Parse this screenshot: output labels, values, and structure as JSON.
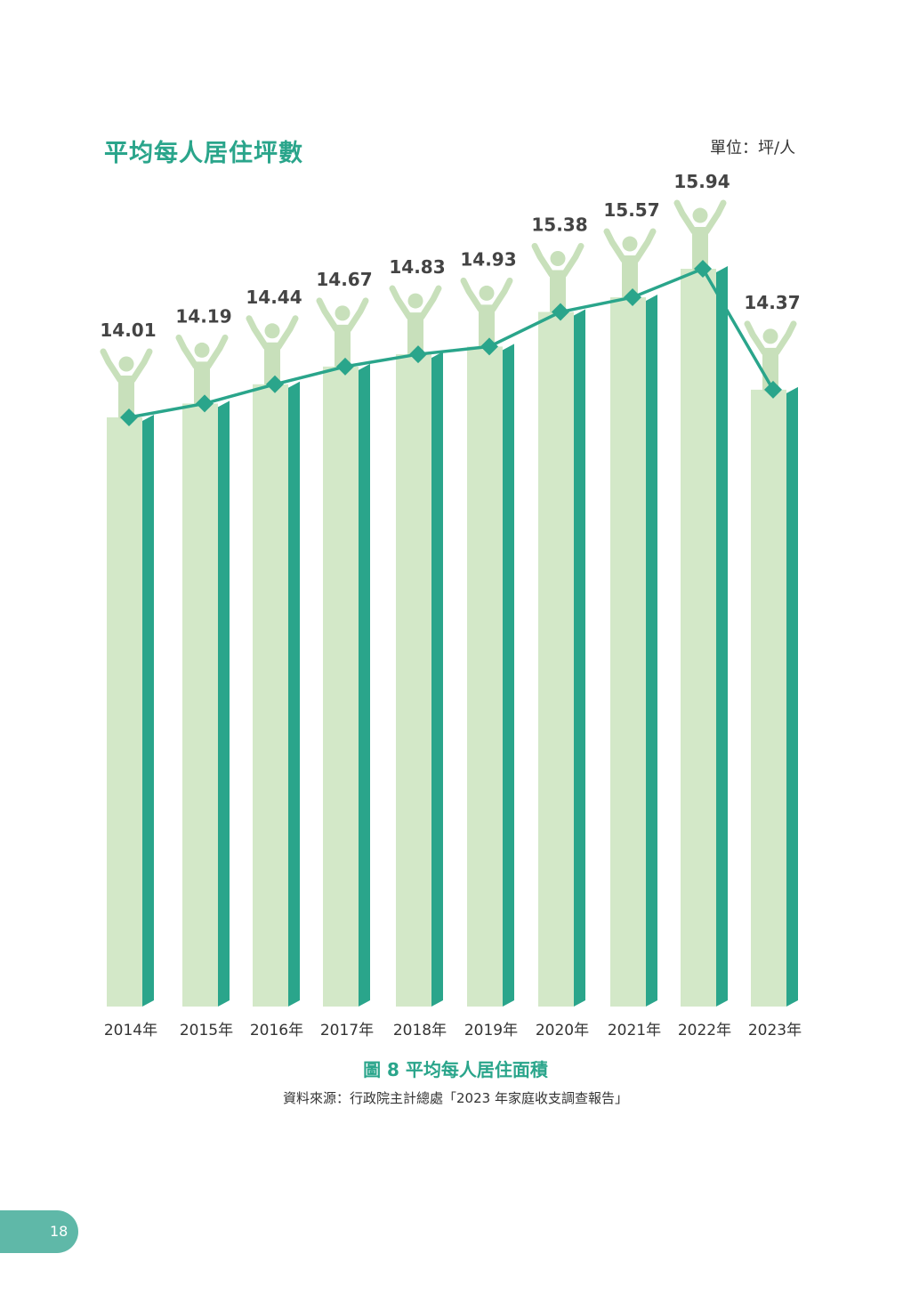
{
  "chart_data": {
    "type": "bar",
    "title": "平均每人居住坪數",
    "unit_label": "單位：坪/人",
    "categories": [
      "2014年",
      "2015年",
      "2016年",
      "2017年",
      "2018年",
      "2019年",
      "2020年",
      "2021年",
      "2022年",
      "2023年"
    ],
    "values": [
      14.01,
      14.19,
      14.44,
      14.67,
      14.83,
      14.93,
      15.38,
      15.57,
      15.94,
      14.37
    ],
    "value_labels": [
      "14.01",
      "14.19",
      "14.44",
      "14.67",
      "14.83",
      "14.93",
      "15.38",
      "15.57",
      "15.94",
      "14.37"
    ],
    "overlay": "line with diamond markers",
    "colors": {
      "bar_front": "#d3e8c8",
      "bar_side": "#2aa58b",
      "line": "#2aa58b",
      "person_icon": "#c8e0bb",
      "title": "#2aa58b"
    }
  },
  "caption": "圖 8 平均每人居住面積",
  "source": "資料來源：行政院主計總處「2023 年家庭收支調查報告」",
  "page_number": "18"
}
